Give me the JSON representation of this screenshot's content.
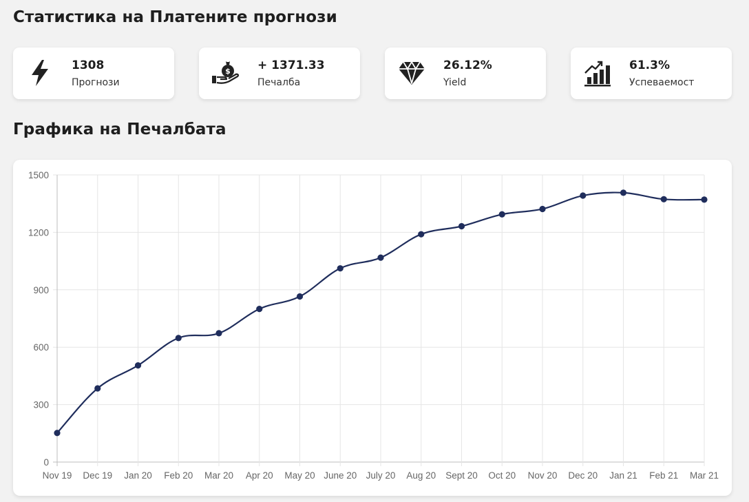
{
  "stats_title": "Статистика на Платените прогнози",
  "cards": [
    {
      "icon": "lightning-icon",
      "value": "1308",
      "label": "Прогнози"
    },
    {
      "icon": "money-bag-hand-icon",
      "value": "+ 1371.33",
      "label": "Печалба"
    },
    {
      "icon": "diamond-icon",
      "value": "26.12%",
      "label": "Yield"
    },
    {
      "icon": "growth-chart-icon",
      "value": "61.3%",
      "label": "Успеваемост"
    }
  ],
  "chart_title": "Графика на Печалбата",
  "colors": {
    "line": "#1f2d5c",
    "grid": "#e5e5e5",
    "axis": "#bdbdbd"
  },
  "chart_data": {
    "type": "line",
    "title": "",
    "xlabel": "",
    "ylabel": "",
    "categories": [
      "Nov 19",
      "Dec 19",
      "Jan 20",
      "Feb 20",
      "Mar 20",
      "Apr 20",
      "May 20",
      "June 20",
      "July 20",
      "Aug 20",
      "Sept 20",
      "Oct 20",
      "Nov 20",
      "Dec 20",
      "Jan 21",
      "Feb 21",
      "Mar 21"
    ],
    "series": [
      {
        "values": [
          152,
          385,
          505,
          648,
          673,
          800,
          865,
          1012,
          1068,
          1190,
          1232,
          1294,
          1322,
          1392,
          1407,
          1373,
          1371
        ]
      }
    ],
    "ylim": [
      0,
      1500
    ],
    "yticks": [
      0,
      300,
      600,
      900,
      1200,
      1500
    ],
    "grid": true,
    "legend": "none"
  }
}
